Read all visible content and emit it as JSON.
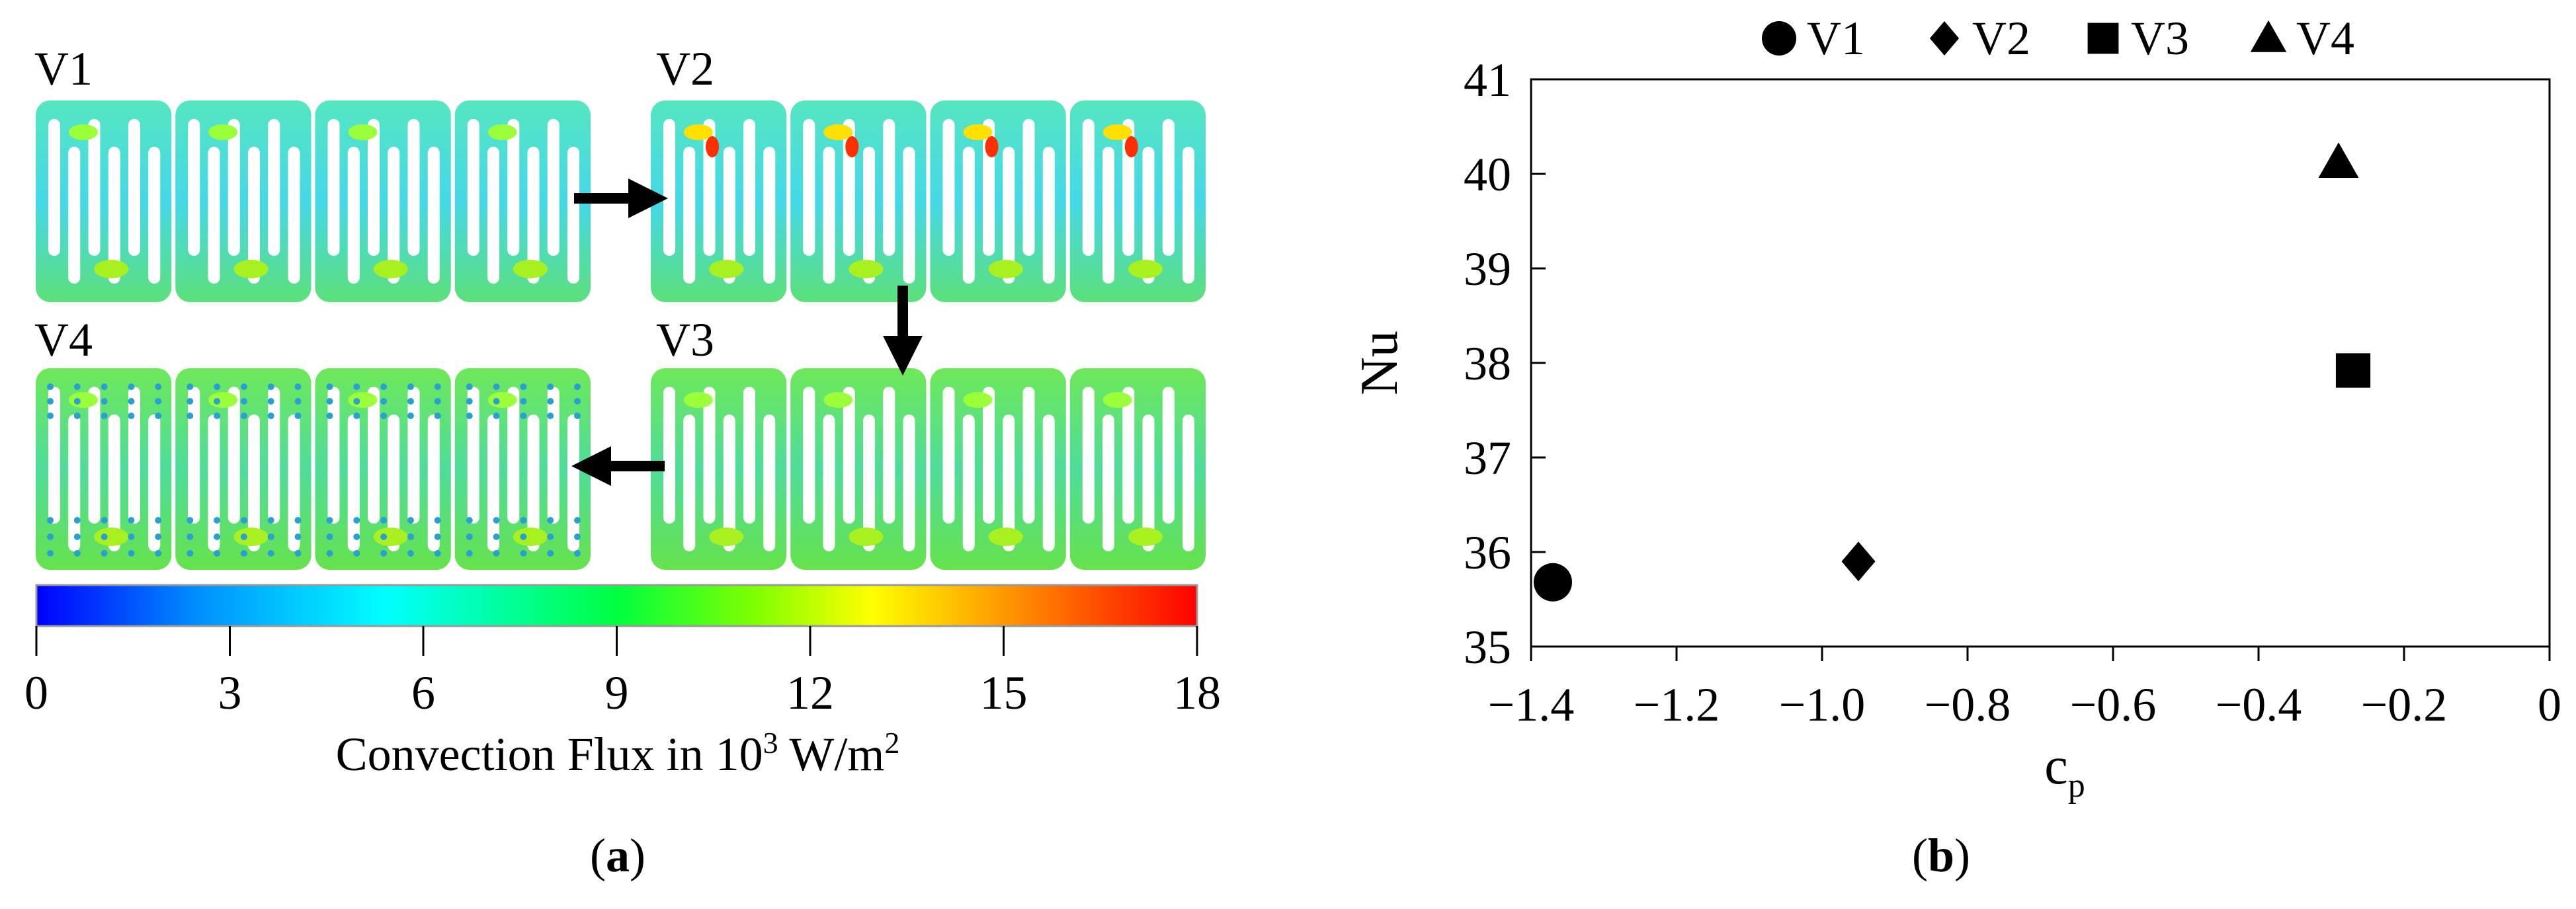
{
  "panel_a": {
    "variants": [
      "V1",
      "V2",
      "V3",
      "V4"
    ],
    "colorbar": {
      "ticks": [
        "0",
        "3",
        "6",
        "9",
        "12",
        "15",
        "18"
      ],
      "label_main": "Convection Flux in 10",
      "label_sup": "3",
      "label_unit": " W/m",
      "label_unit_sup": "2",
      "colors": [
        "#0000ff",
        "#00a0ff",
        "#00ffff",
        "#00ff44",
        "#7fff00",
        "#ffff00",
        "#ff8000",
        "#ff0000"
      ]
    },
    "caption": "a"
  },
  "chart_data": {
    "type": "scatter",
    "xlabel": "c",
    "xlabel_sub": "p",
    "ylabel": "Nu",
    "xlim": [
      -1.4,
      0
    ],
    "ylim": [
      35,
      41
    ],
    "x_ticks": [
      "−1.4",
      "−1.2",
      "−1.0",
      "−0.8",
      "−0.6",
      "−0.4",
      "−0.2",
      "0"
    ],
    "y_ticks": [
      "35",
      "36",
      "37",
      "38",
      "39",
      "40",
      "41"
    ],
    "legend_position": "top",
    "series": [
      {
        "name": "V1",
        "marker": "circle",
        "x": [
          -1.37
        ],
        "y": [
          35.68
        ]
      },
      {
        "name": "V2",
        "marker": "diamond",
        "x": [
          -0.95
        ],
        "y": [
          35.9
        ]
      },
      {
        "name": "V3",
        "marker": "square",
        "x": [
          -0.27
        ],
        "y": [
          37.92
        ]
      },
      {
        "name": "V4",
        "marker": "triangle",
        "x": [
          -0.29
        ],
        "y": [
          40.12
        ]
      }
    ],
    "caption": "b"
  }
}
